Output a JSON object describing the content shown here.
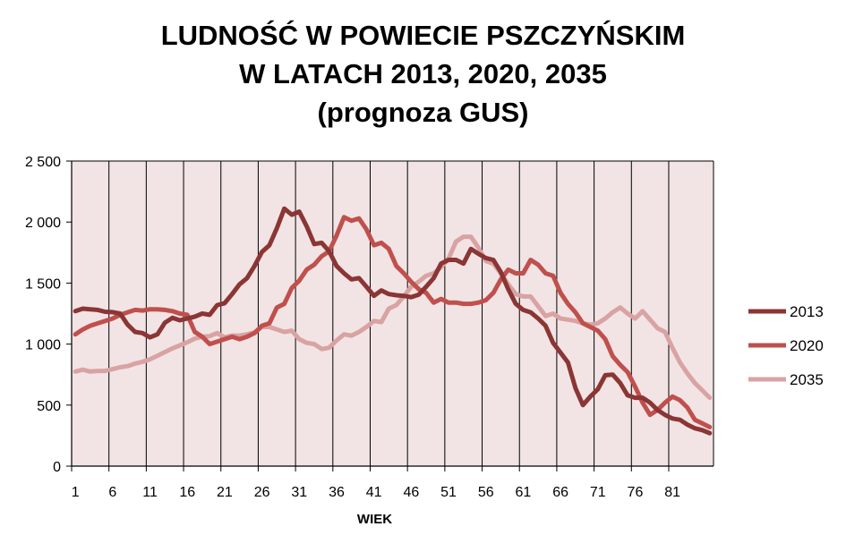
{
  "chart_data": {
    "type": "line",
    "title_lines": [
      "LUDNOŚĆ  W POWIECIE PSZCZYŃSKIM",
      "W LATACH 2013, 2020, 2035",
      "(prognoza GUS)"
    ],
    "xlabel": "WIEK",
    "ylabel": "",
    "ylim": [
      0,
      2500
    ],
    "yticks": [
      0,
      500,
      1000,
      1500,
      2000,
      2500
    ],
    "ytick_labels": [
      "0",
      "500",
      "1 000",
      "1 500",
      "2 000",
      "2 500"
    ],
    "xticks": [
      1,
      6,
      11,
      16,
      21,
      26,
      31,
      36,
      41,
      46,
      51,
      56,
      61,
      66,
      71,
      76,
      81
    ],
    "x_range": [
      1,
      86
    ],
    "grid": "vertical",
    "plot_background": "#f2e4e4",
    "legend_position": "right",
    "series": [
      {
        "name": "2013",
        "color": "#8b3535",
        "values": [
          1270,
          1290,
          1285,
          1280,
          1265,
          1262,
          1250,
          1160,
          1100,
          1090,
          1055,
          1080,
          1175,
          1215,
          1195,
          1210,
          1225,
          1250,
          1240,
          1320,
          1335,
          1410,
          1490,
          1540,
          1640,
          1755,
          1810,
          1950,
          2110,
          2060,
          2085,
          1965,
          1820,
          1830,
          1760,
          1640,
          1580,
          1530,
          1540,
          1470,
          1395,
          1440,
          1410,
          1400,
          1395,
          1385,
          1405,
          1470,
          1540,
          1660,
          1690,
          1690,
          1660,
          1780,
          1740,
          1705,
          1690,
          1590,
          1450,
          1330,
          1280,
          1260,
          1210,
          1150,
          1010,
          930,
          850,
          640,
          500,
          570,
          630,
          745,
          750,
          680,
          580,
          560,
          560,
          520,
          460,
          420,
          390,
          380,
          340,
          310,
          295,
          270
        ]
      },
      {
        "name": "2020",
        "color": "#c0504d",
        "values": [
          1080,
          1120,
          1150,
          1170,
          1190,
          1210,
          1240,
          1260,
          1280,
          1275,
          1285,
          1285,
          1280,
          1270,
          1250,
          1240,
          1100,
          1060,
          1000,
          1020,
          1040,
          1060,
          1040,
          1060,
          1090,
          1150,
          1170,
          1300,
          1330,
          1460,
          1520,
          1610,
          1650,
          1720,
          1760,
          1890,
          2040,
          2010,
          2030,
          1940,
          1810,
          1830,
          1780,
          1640,
          1580,
          1510,
          1450,
          1420,
          1340,
          1370,
          1340,
          1340,
          1330,
          1330,
          1340,
          1360,
          1420,
          1530,
          1610,
          1580,
          1580,
          1690,
          1650,
          1580,
          1560,
          1420,
          1330,
          1260,
          1170,
          1140,
          1110,
          1040,
          900,
          830,
          770,
          650,
          520,
          420,
          460,
          520,
          570,
          540,
          480,
          380,
          350,
          320
        ]
      },
      {
        "name": "2035",
        "color": "#d9a3a3",
        "values": [
          775,
          790,
          775,
          780,
          780,
          795,
          810,
          820,
          840,
          855,
          875,
          905,
          935,
          965,
          990,
          1015,
          1045,
          1060,
          1065,
          1090,
          1055,
          1070,
          1070,
          1080,
          1095,
          1140,
          1140,
          1120,
          1100,
          1110,
          1040,
          1010,
          1000,
          960,
          970,
          1030,
          1080,
          1070,
          1100,
          1140,
          1190,
          1180,
          1290,
          1320,
          1390,
          1470,
          1510,
          1560,
          1580,
          1630,
          1700,
          1840,
          1880,
          1880,
          1790,
          1680,
          1660,
          1580,
          1490,
          1410,
          1390,
          1390,
          1310,
          1230,
          1250,
          1210,
          1200,
          1190,
          1170,
          1160,
          1170,
          1210,
          1260,
          1300,
          1250,
          1210,
          1270,
          1200,
          1130,
          1100,
          970,
          850,
          760,
          680,
          620,
          560
        ]
      }
    ]
  }
}
